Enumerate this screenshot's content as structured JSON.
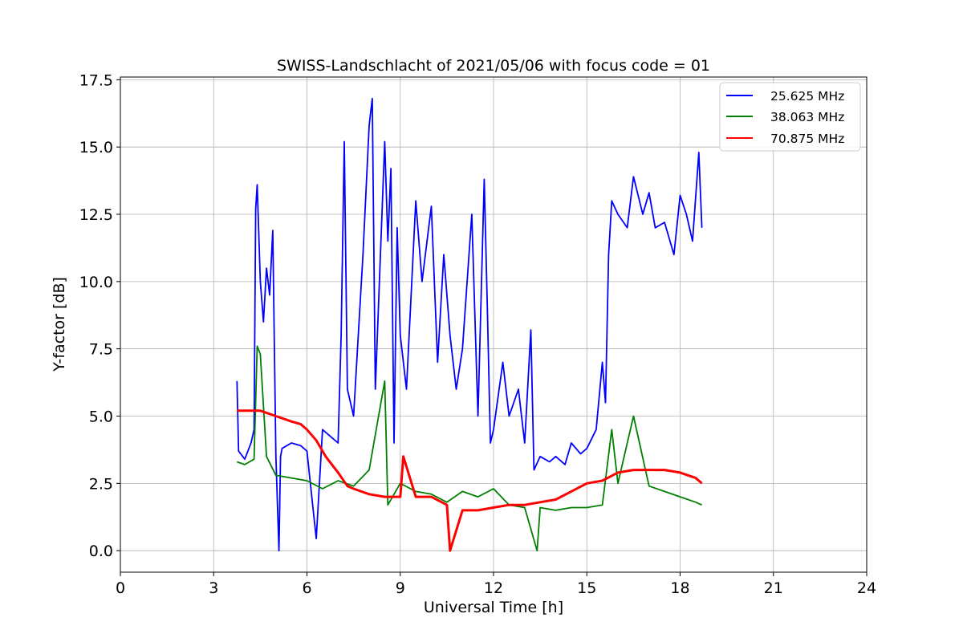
{
  "chart_data": {
    "type": "line",
    "title": "SWISS-Landschlacht of 2021/05/06 with focus code = 01",
    "xlabel": "Universal Time [h]",
    "ylabel": "Y-factor [dB]",
    "xlim": [
      0,
      24
    ],
    "ylim": [
      -0.8,
      17.6
    ],
    "xticks": [
      0,
      3,
      6,
      9,
      12,
      15,
      18,
      21,
      24
    ],
    "xtick_labels": [
      "0",
      "3",
      "6",
      "9",
      "12",
      "15",
      "18",
      "21",
      "24"
    ],
    "yticks": [
      0,
      2.5,
      5,
      7.5,
      10,
      12.5,
      15,
      17.5
    ],
    "ytick_labels": [
      "0.0",
      "2.5",
      "5.0",
      "7.5",
      "10.0",
      "12.5",
      "15.0",
      "17.5"
    ],
    "grid": true,
    "legend_position": "top-right",
    "series": [
      {
        "name": "25.625 MHz",
        "color": "#0000ff",
        "x": [
          3.75,
          3.8,
          4.0,
          4.2,
          4.3,
          4.35,
          4.4,
          4.5,
          4.6,
          4.7,
          4.8,
          4.9,
          5.0,
          5.1,
          5.15,
          5.2,
          5.5,
          5.8,
          6.0,
          6.2,
          6.3,
          6.5,
          6.8,
          7.0,
          7.1,
          7.2,
          7.3,
          7.5,
          7.8,
          8.0,
          8.1,
          8.2,
          8.5,
          8.6,
          8.7,
          8.8,
          8.9,
          9.0,
          9.2,
          9.5,
          9.7,
          10.0,
          10.2,
          10.4,
          10.6,
          10.8,
          11.0,
          11.3,
          11.5,
          11.7,
          11.8,
          11.9,
          12.0,
          12.3,
          12.5,
          12.8,
          13.0,
          13.2,
          13.3,
          13.5,
          13.8,
          14.0,
          14.3,
          14.5,
          14.8,
          15.0,
          15.3,
          15.5,
          15.6,
          15.7,
          15.8,
          16.0,
          16.3,
          16.5,
          16.8,
          17.0,
          17.2,
          17.5,
          17.8,
          18.0,
          18.2,
          18.4,
          18.6,
          18.7
        ],
        "values": [
          6.3,
          3.7,
          3.4,
          4.0,
          4.5,
          12.7,
          13.6,
          10.0,
          8.5,
          10.5,
          9.5,
          11.9,
          3.5,
          0.0,
          3.5,
          3.8,
          4.0,
          3.9,
          3.7,
          1.5,
          0.45,
          4.5,
          4.2,
          4.0,
          8.0,
          15.2,
          6.0,
          5.0,
          11.0,
          15.8,
          16.8,
          6.0,
          15.2,
          11.5,
          14.2,
          4.0,
          12.0,
          8.0,
          6.0,
          13.0,
          10.0,
          12.8,
          7.0,
          11.0,
          8.0,
          6.0,
          7.5,
          12.5,
          5.0,
          13.8,
          9.0,
          4.0,
          4.5,
          7.0,
          5.0,
          6.0,
          4.0,
          8.2,
          3.0,
          3.5,
          3.3,
          3.5,
          3.2,
          4.0,
          3.6,
          3.8,
          4.5,
          7.0,
          5.5,
          11.0,
          13.0,
          12.5,
          12.0,
          13.9,
          12.5,
          13.3,
          12.0,
          12.2,
          11.0,
          13.2,
          12.5,
          11.5,
          14.8,
          12.0
        ]
      },
      {
        "name": "38.063 MHz",
        "color": "#008000",
        "x": [
          3.75,
          4.0,
          4.3,
          4.4,
          4.5,
          4.7,
          5.0,
          5.5,
          6.0,
          6.5,
          7.0,
          7.5,
          8.0,
          8.5,
          8.6,
          9.0,
          9.5,
          10.0,
          10.5,
          11.0,
          11.5,
          12.0,
          12.5,
          13.0,
          13.4,
          13.5,
          14.0,
          14.5,
          15.0,
          15.5,
          15.8,
          16.0,
          16.5,
          17.0,
          17.5,
          18.0,
          18.5,
          18.7
        ],
        "values": [
          3.3,
          3.2,
          3.4,
          7.6,
          7.3,
          3.5,
          2.8,
          2.7,
          2.6,
          2.3,
          2.6,
          2.4,
          3.0,
          6.3,
          1.7,
          2.5,
          2.2,
          2.1,
          1.8,
          2.2,
          2.0,
          2.3,
          1.7,
          1.6,
          0.0,
          1.6,
          1.5,
          1.6,
          1.6,
          1.7,
          4.5,
          2.5,
          5.0,
          2.4,
          2.2,
          2.0,
          1.8,
          1.7
        ]
      },
      {
        "name": "70.875 MHz",
        "color": "#ff0000",
        "x": [
          3.75,
          4.0,
          4.5,
          5.0,
          5.5,
          5.8,
          6.0,
          6.3,
          6.6,
          7.0,
          7.3,
          7.5,
          8.0,
          8.5,
          9.0,
          9.1,
          9.5,
          10.0,
          10.5,
          10.6,
          11.0,
          11.5,
          12.0,
          12.5,
          13.0,
          13.5,
          14.0,
          14.5,
          15.0,
          15.5,
          16.0,
          16.5,
          17.0,
          17.5,
          18.0,
          18.5,
          18.7
        ],
        "values": [
          5.2,
          5.2,
          5.2,
          5.0,
          4.8,
          4.7,
          4.5,
          4.1,
          3.5,
          2.9,
          2.4,
          2.3,
          2.1,
          2.0,
          2.0,
          3.5,
          2.0,
          2.0,
          1.7,
          0.0,
          1.5,
          1.5,
          1.6,
          1.7,
          1.7,
          1.8,
          1.9,
          2.2,
          2.5,
          2.6,
          2.9,
          3.0,
          3.0,
          3.0,
          2.9,
          2.7,
          2.5
        ]
      }
    ]
  }
}
